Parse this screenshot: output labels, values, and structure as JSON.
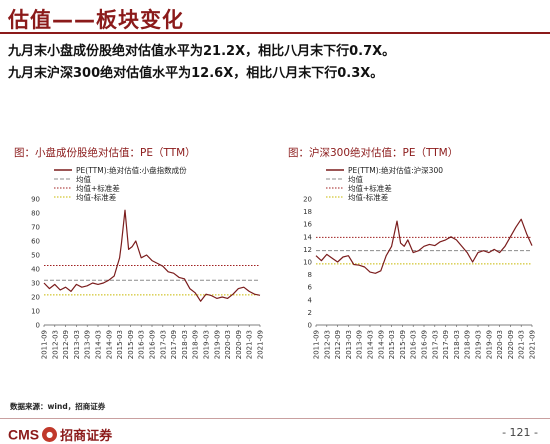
{
  "header": {
    "title": "估值——板块变化",
    "summary_1": "九月末小盘成份股绝对估值水平为21.2X，相比八月末下行0.7X。",
    "summary_2": "九月末沪深300绝对估值水平为12.6X，相比八月末下行0.3X。"
  },
  "footer": {
    "source": "数据来源：wind，招商证券",
    "logo_text": "CMS",
    "logo_cn": "招商证券",
    "page_number": "- 121 -"
  },
  "colors": {
    "brand": "#8b1a1a",
    "series_line": "#7b1d1d",
    "mean_line": "#8c8c8c",
    "plus_std_line": "#a02020",
    "minus_std_line": "#c8b800"
  },
  "chart_data": [
    {
      "type": "line",
      "title": "图：小盘成份股绝对估值：PE（TTM）",
      "ylim": [
        0,
        90
      ],
      "yticks": [
        0,
        10,
        20,
        30,
        40,
        50,
        60,
        70,
        80,
        90
      ],
      "x_ticks": [
        "2011-09",
        "2012-03",
        "2012-09",
        "2013-03",
        "2013-09",
        "2014-03",
        "2014-09",
        "2015-03",
        "2015-09",
        "2016-03",
        "2016-09",
        "2017-03",
        "2017-09",
        "2018-03",
        "2018-09",
        "2019-03",
        "2019-09",
        "2020-03",
        "2020-09",
        "2021-03",
        "2021-09"
      ],
      "legend": [
        "PE(TTM):绝对估值:小盘指数成份",
        "均值",
        "均值+标准差",
        "均值-标准差"
      ],
      "legend_placement": "top",
      "grid": false,
      "mean": 32,
      "plus_std": 42.5,
      "minus_std": 21.5,
      "series": [
        {
          "x": [
            "2011-09",
            "2011-12",
            "2012-03",
            "2012-06",
            "2012-09",
            "2012-12",
            "2013-03",
            "2013-06",
            "2013-09",
            "2013-12",
            "2014-03",
            "2014-06",
            "2014-09",
            "2014-12",
            "2015-03",
            "2015-04",
            "2015-06",
            "2015-08",
            "2015-10",
            "2015-12",
            "2016-03",
            "2016-06",
            "2016-09",
            "2016-12",
            "2017-03",
            "2017-06",
            "2017-09",
            "2017-12",
            "2018-03",
            "2018-06",
            "2018-09",
            "2018-12",
            "2019-03",
            "2019-06",
            "2019-09",
            "2019-12",
            "2020-03",
            "2020-06",
            "2020-09",
            "2020-12",
            "2021-03",
            "2021-06",
            "2021-09"
          ],
          "y": [
            30,
            26,
            29,
            25,
            27,
            24,
            29,
            27,
            28,
            30,
            29,
            30,
            32,
            35,
            48,
            58,
            82,
            54,
            56,
            60,
            48,
            50,
            46,
            44,
            42,
            38,
            37,
            34,
            33,
            26,
            23,
            17,
            22,
            21,
            19,
            20,
            19,
            22,
            26,
            27,
            24,
            22,
            21.2
          ]
        }
      ]
    },
    {
      "type": "line",
      "title": "图：沪深300绝对估值：PE（TTM）",
      "ylim": [
        0,
        20
      ],
      "yticks": [
        0,
        2,
        4,
        6,
        8,
        10,
        12,
        14,
        16,
        18,
        20
      ],
      "x_ticks": [
        "2011-09",
        "2012-03",
        "2012-09",
        "2013-03",
        "2013-09",
        "2014-03",
        "2014-09",
        "2015-03",
        "2015-09",
        "2016-03",
        "2016-09",
        "2017-03",
        "2017-09",
        "2018-03",
        "2018-09",
        "2019-03",
        "2019-09",
        "2020-03",
        "2020-09",
        "2021-03",
        "2021-09"
      ],
      "legend": [
        "PE(TTM):绝对估值:沪深300",
        "均值",
        "均值+标准差",
        "均值-标准差"
      ],
      "legend_placement": "top",
      "grid": false,
      "mean": 11.8,
      "plus_std": 13.9,
      "minus_std": 9.7,
      "series": [
        {
          "x": [
            "2011-09",
            "2011-12",
            "2012-03",
            "2012-06",
            "2012-09",
            "2012-12",
            "2013-03",
            "2013-06",
            "2013-09",
            "2013-12",
            "2014-03",
            "2014-06",
            "2014-09",
            "2014-12",
            "2015-03",
            "2015-06",
            "2015-08",
            "2015-10",
            "2015-12",
            "2016-03",
            "2016-06",
            "2016-09",
            "2016-12",
            "2017-03",
            "2017-06",
            "2017-09",
            "2017-12",
            "2018-03",
            "2018-06",
            "2018-09",
            "2018-12",
            "2019-03",
            "2019-06",
            "2019-09",
            "2019-12",
            "2020-03",
            "2020-06",
            "2020-09",
            "2020-12",
            "2021-03",
            "2021-06",
            "2021-09"
          ],
          "y": [
            11,
            10.2,
            11.2,
            10.6,
            10,
            10.8,
            11,
            9.6,
            9.5,
            9.2,
            8.4,
            8.2,
            8.6,
            11,
            12.5,
            16.5,
            13,
            12.5,
            13.5,
            11.5,
            11.8,
            12.5,
            12.8,
            12.6,
            13.2,
            13.5,
            14,
            13.5,
            12.5,
            11.5,
            10,
            11.5,
            11.8,
            11.5,
            12,
            11.5,
            12.5,
            14,
            15.5,
            16.8,
            14.5,
            12.6
          ]
        }
      ]
    }
  ]
}
